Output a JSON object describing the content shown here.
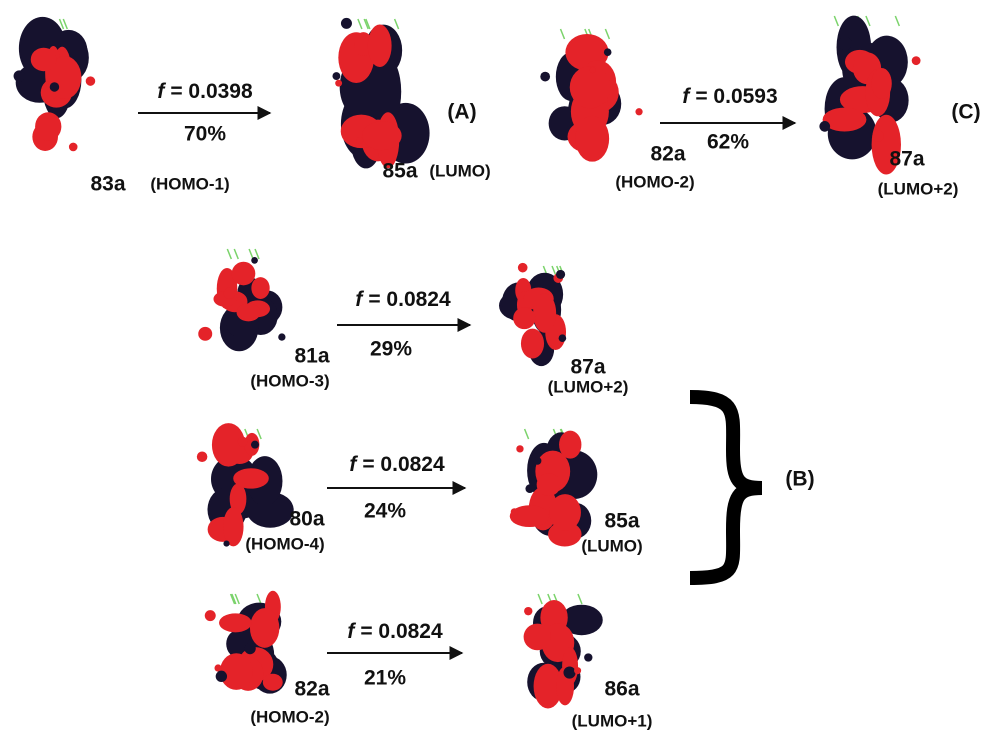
{
  "transitions": [
    {
      "donor": {
        "name": "83a",
        "label": "(HOMO-1)"
      },
      "acceptor": {
        "name": "85a",
        "label": "(LUMO)"
      },
      "f": {
        "symbol": "f",
        "value": "= 0.0398"
      },
      "percent": "70%"
    },
    {
      "donor": {
        "name": "82a",
        "label": "(HOMO-2)"
      },
      "acceptor": {
        "name": "87a",
        "label": "(LUMO+2)"
      },
      "f": {
        "symbol": "f",
        "value": "= 0.0593"
      },
      "percent": "62%"
    },
    {
      "donor": {
        "name": "81a",
        "label": "(HOMO-3)"
      },
      "acceptor": {
        "name": "87a",
        "label": "(LUMO+2)"
      },
      "f": {
        "symbol": "f",
        "value": "= 0.0824"
      },
      "percent": "29%"
    },
    {
      "donor": {
        "name": "80a",
        "label": "(HOMO-4)"
      },
      "acceptor": {
        "name": "85a",
        "label": "(LUMO)"
      },
      "f": {
        "symbol": "f",
        "value": "= 0.0824"
      },
      "percent": "24%"
    },
    {
      "donor": {
        "name": "82a",
        "label": "(HOMO-2)"
      },
      "acceptor": {
        "name": "86a",
        "label": "(LUMO+1)"
      },
      "f": {
        "symbol": "f",
        "value": "= 0.0824"
      },
      "percent": "21%"
    }
  ],
  "groups": [
    {
      "label": "(A)"
    },
    {
      "label": "(C)"
    },
    {
      "label": "(B)"
    }
  ]
}
